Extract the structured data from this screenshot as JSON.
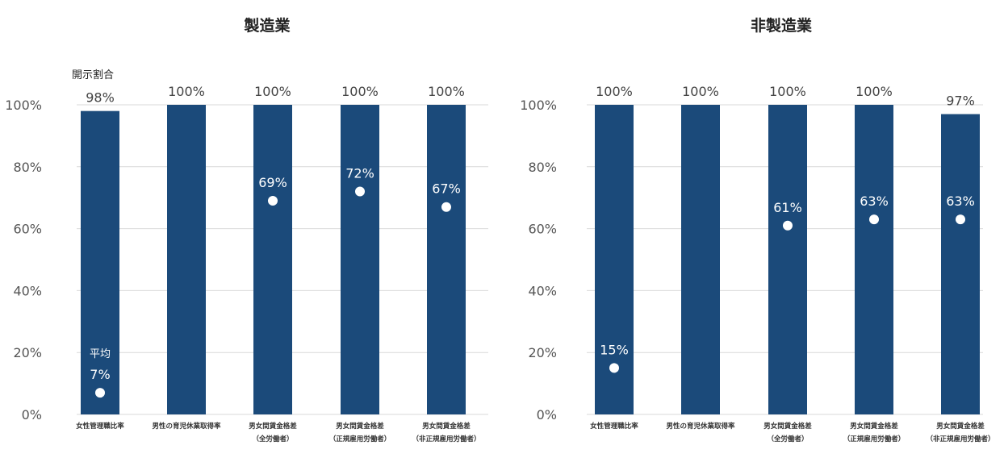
{
  "chart_data": [
    {
      "type": "bar",
      "title": "製造業",
      "ylim": [
        0,
        100
      ],
      "yticks": [
        "0%",
        "20%",
        "40%",
        "60%",
        "80%",
        "100%"
      ],
      "categories": [
        [
          "女性管理職比率"
        ],
        [
          "男性の育児休業取得率"
        ],
        [
          "男女間賃金格差",
          "（全労働者）"
        ],
        [
          "男女間賃金格差",
          "（正規雇用労働者）"
        ],
        [
          "男女間賃金格差",
          "（非正規雇用労働者）"
        ]
      ],
      "series": [
        {
          "name": "開示割合",
          "values": [
            98,
            100,
            100,
            100,
            100
          ],
          "labels": [
            "98%",
            "100%",
            "100%",
            "100%",
            "100%"
          ]
        },
        {
          "name": "平均",
          "values": [
            7,
            null,
            69,
            72,
            67
          ],
          "labels": [
            "7%",
            "",
            "69%",
            "72%",
            "67%"
          ]
        }
      ],
      "notes": {
        "disclosure": "開示割合",
        "average": "平均"
      },
      "grid": true
    },
    {
      "type": "bar",
      "title": "非製造業",
      "ylim": [
        0,
        100
      ],
      "yticks": [
        "0%",
        "20%",
        "40%",
        "60%",
        "80%",
        "100%"
      ],
      "categories": [
        [
          "女性管理職比率"
        ],
        [
          "男性の育児休業取得率"
        ],
        [
          "男女間賃金格差",
          "（全労働者）"
        ],
        [
          "男女間賃金格差",
          "（正規雇用労働者）"
        ],
        [
          "男女間賃金格差",
          "（非正規雇用労働者）"
        ]
      ],
      "series": [
        {
          "values": [
            100,
            100,
            100,
            100,
            97
          ],
          "labels": [
            "100%",
            "100%",
            "100%",
            "100%",
            "97%"
          ]
        },
        {
          "values": [
            15,
            null,
            61,
            63,
            63
          ],
          "labels": [
            "15%",
            "",
            "61%",
            "63%",
            "63%"
          ]
        }
      ],
      "grid": true
    }
  ],
  "colors": {
    "bar": "#1b4a7a",
    "grid": "#d9d9d9",
    "dot": "#ffffff"
  }
}
